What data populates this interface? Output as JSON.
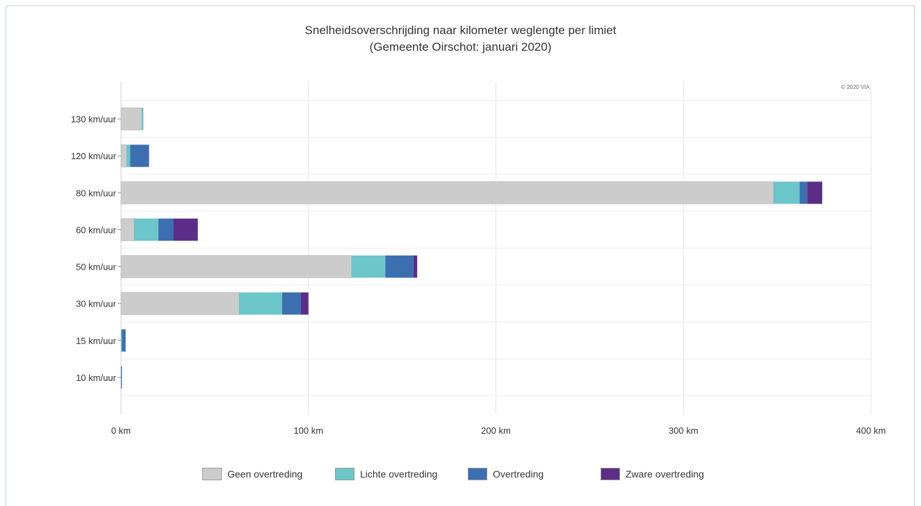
{
  "chart_data": {
    "type": "bar",
    "orientation": "horizontal",
    "stacked": true,
    "title": "Snelheidsoverschrijding naar kilometer weglengte per limiet",
    "subtitle": "(Gemeente Oirschot: januari 2020)",
    "credit": "© 2020 VIA",
    "categories": [
      "130 km/uur",
      "120 km/uur",
      "80 km/uur",
      "60 km/uur",
      "50 km/uur",
      "30 km/uur",
      "15 km/uur",
      "10 km/uur"
    ],
    "series": [
      {
        "name": "Geen overtreding",
        "color": "#cccccc",
        "values": [
          11,
          3,
          348,
          7,
          123,
          63,
          0,
          0
        ]
      },
      {
        "name": "Lichte overtreding",
        "color": "#6cc5c8",
        "values": [
          1,
          2,
          14,
          13,
          18,
          23,
          0.5,
          0
        ]
      },
      {
        "name": "Overtreding",
        "color": "#3b6fb0",
        "values": [
          0,
          10,
          4,
          8,
          15,
          10,
          2,
          0.5
        ]
      },
      {
        "name": "Zware overtreding",
        "color": "#5b2d86",
        "values": [
          0,
          0,
          8,
          13,
          2,
          4,
          0,
          0
        ]
      }
    ],
    "xlim": [
      0,
      400
    ],
    "xticks": [
      "0 km",
      "100 km",
      "200 km",
      "300 km",
      "400 km"
    ],
    "xtick_values": [
      0,
      100,
      200,
      300,
      400
    ],
    "grid": true,
    "legend_position": "bottom"
  }
}
